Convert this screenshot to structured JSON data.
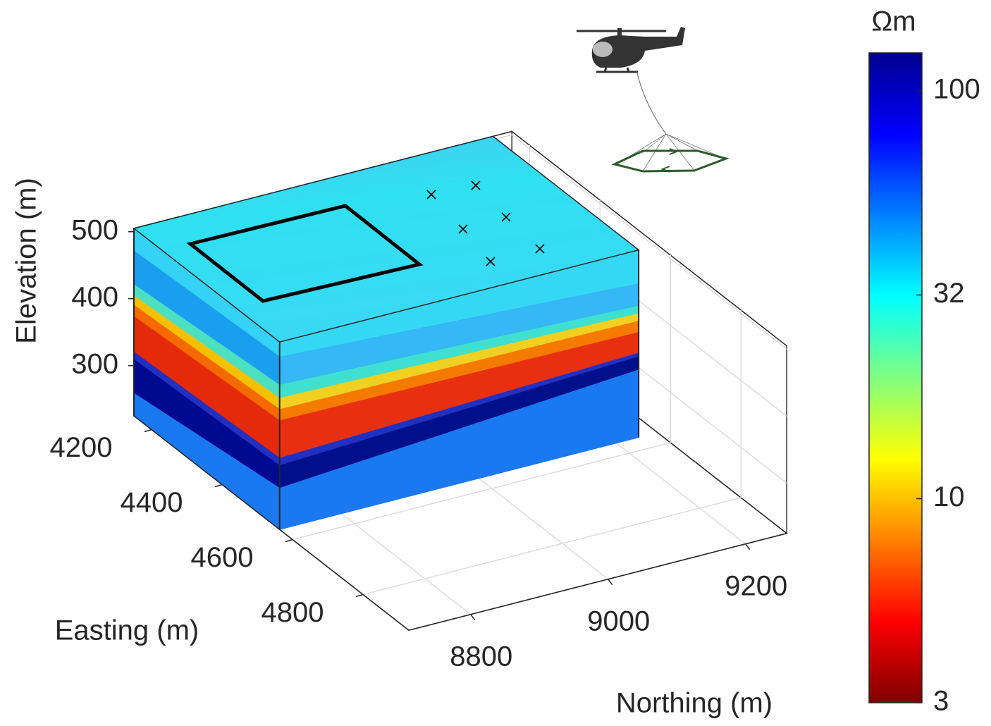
{
  "chart_data": {
    "type": "volume-3d",
    "xlabel": "Easting (m)",
    "ylabel": "Northing (m)",
    "zlabel": "Elevation (m)",
    "xlim": [
      4150,
      4930
    ],
    "xticks": [
      4200,
      4400,
      4600,
      4800
    ],
    "ylim": [
      8710,
      9260
    ],
    "yticks": [
      8800,
      9000,
      9200
    ],
    "zlim": [
      225,
      505
    ],
    "zticks": [
      300,
      400,
      500
    ],
    "grid": true,
    "colorbar": {
      "label": "Ωm",
      "scale": "log",
      "colormap": "jet",
      "clim": [
        3.16,
        124
      ],
      "ticks": [
        {
          "value": 3.16,
          "label": "3"
        },
        10,
        {
          "value": 31.6,
          "label": "32"
        },
        100
      ]
    }
  }
}
